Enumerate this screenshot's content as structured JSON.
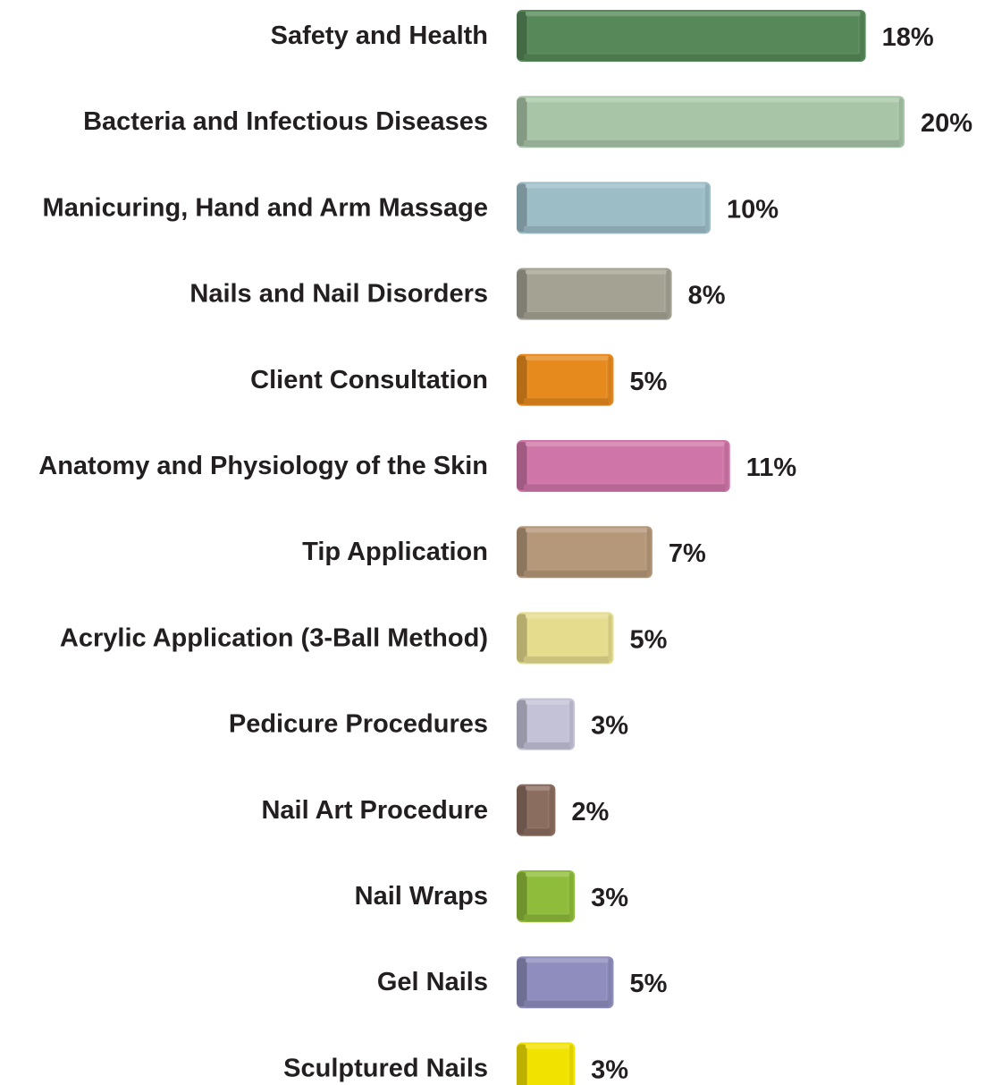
{
  "chart_data": {
    "type": "bar",
    "orientation": "horizontal",
    "categories": [
      "Safety and Health",
      "Bacteria and Infectious Diseases",
      "Manicuring, Hand and Arm Massage",
      "Nails and Nail Disorders",
      "Client Consultation",
      "Anatomy and Physiology of the Skin",
      "Tip Application",
      "Acrylic Application (3-Ball Method)",
      "Pedicure Procedures",
      "Nail Art Procedure",
      "Nail Wraps",
      "Gel Nails",
      "Sculptured Nails"
    ],
    "values": [
      18,
      20,
      10,
      8,
      5,
      11,
      7,
      5,
      3,
      2,
      3,
      5,
      3
    ],
    "value_labels": [
      "18%",
      "20%",
      "10%",
      "8%",
      "5%",
      "11%",
      "7%",
      "5%",
      "3%",
      "2%",
      "3%",
      "5%",
      "3%"
    ],
    "unit": "%",
    "colors": [
      "#568859",
      "#a9c5a8",
      "#9dbdc6",
      "#a4a293",
      "#e78a1e",
      "#cf75a7",
      "#b59779",
      "#e5dc8d",
      "#c3c2d7",
      "#8b6d5f",
      "#8fbc3b",
      "#8e8dbd",
      "#f2e200"
    ],
    "title": "",
    "xlabel": "",
    "ylabel": "",
    "xlim": [
      0,
      20
    ],
    "grid": false,
    "legend": "none"
  }
}
